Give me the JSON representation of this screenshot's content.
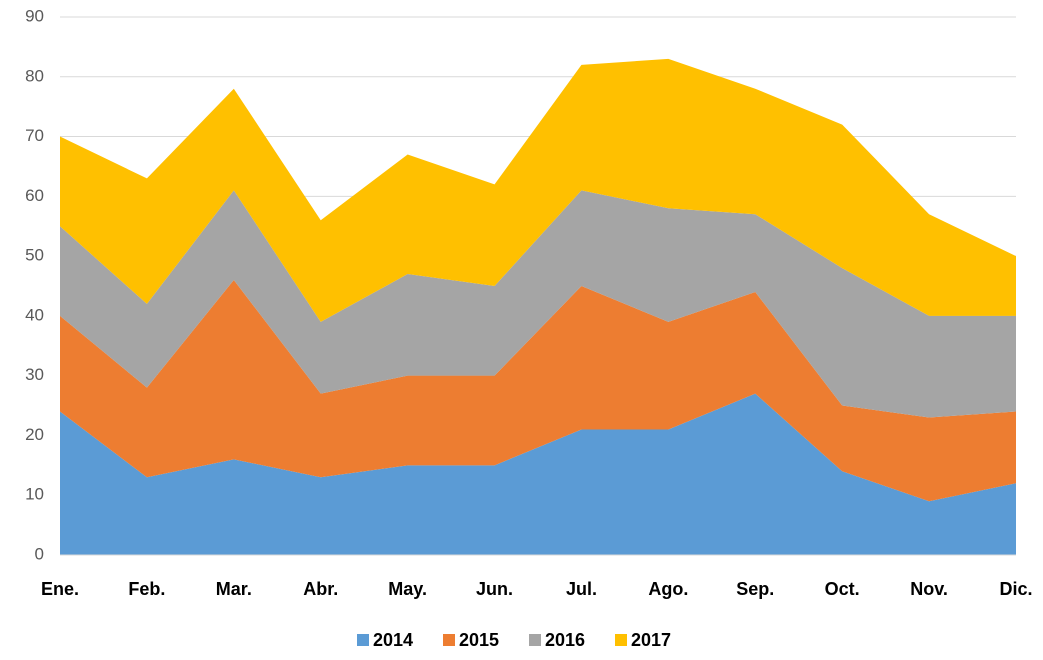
{
  "chart_data": {
    "type": "stacked_area",
    "categories": [
      "Ene.",
      "Feb.",
      "Mar.",
      "Abr.",
      "May.",
      "Jun.",
      "Jul.",
      "Ago.",
      "Sep.",
      "Oct.",
      "Nov.",
      "Dic."
    ],
    "series": [
      {
        "name": "2014",
        "color": "#5b9bd5",
        "values": [
          24,
          13,
          16,
          13,
          15,
          15,
          21,
          21,
          27,
          14,
          9,
          12
        ]
      },
      {
        "name": "2015",
        "color": "#ed7d31",
        "values": [
          16,
          15,
          30,
          14,
          15,
          15,
          24,
          18,
          17,
          11,
          14,
          12
        ]
      },
      {
        "name": "2016",
        "color": "#a5a5a5",
        "values": [
          15,
          14,
          15,
          12,
          17,
          15,
          16,
          19,
          13,
          23,
          17,
          16
        ]
      },
      {
        "name": "2017",
        "color": "#ffc000",
        "values": [
          15,
          21,
          17,
          17,
          20,
          17,
          21,
          25,
          21,
          24,
          17,
          10
        ]
      }
    ],
    "ylim": [
      0,
      90
    ],
    "yticks": [
      0,
      10,
      20,
      30,
      40,
      50,
      60,
      70,
      80,
      90
    ],
    "grid": true,
    "legend": "bottom"
  }
}
